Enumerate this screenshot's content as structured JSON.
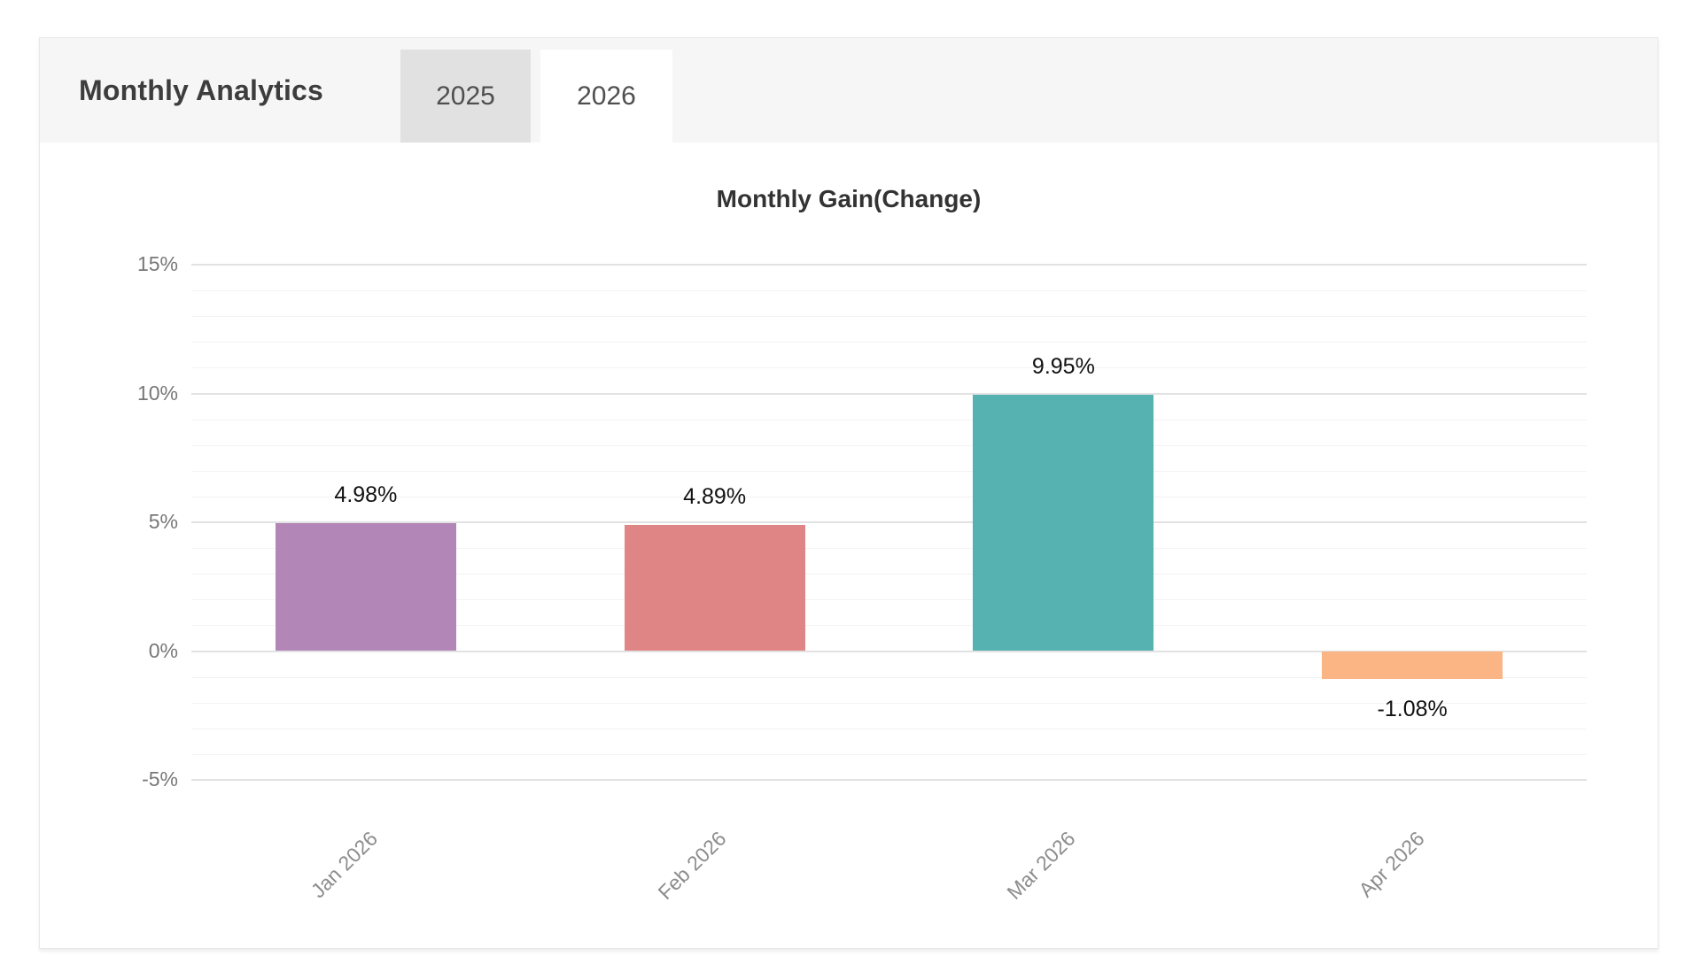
{
  "header": {
    "title": "Monthly Analytics",
    "tabs": [
      {
        "label": "2025",
        "active": false
      },
      {
        "label": "2026",
        "active": true
      }
    ]
  },
  "chart_data": {
    "type": "bar",
    "title": "Monthly Gain(Change)",
    "categories": [
      "Jan 2026",
      "Feb 2026",
      "Mar 2026",
      "Apr 2026"
    ],
    "values": [
      4.98,
      4.89,
      9.95,
      -1.08
    ],
    "value_labels": [
      "4.98%",
      "4.89%",
      "9.95%",
      "-1.08%"
    ],
    "bar_colors": [
      "#b287b8",
      "#df8585",
      "#56b1b1",
      "#fbb484"
    ],
    "y_ticks": [
      {
        "label": "15%",
        "value": 15
      },
      {
        "label": "10%",
        "value": 10
      },
      {
        "label": "5%",
        "value": 5
      },
      {
        "label": "0%",
        "value": 0
      },
      {
        "label": "-5%",
        "value": -5
      }
    ],
    "ylim": [
      -5,
      15
    ],
    "y_major_step": 5,
    "y_minor_step": 1,
    "grid": true,
    "legend": false,
    "xlabel": "",
    "ylabel": ""
  },
  "colors": {
    "header_bg": "#f6f6f6",
    "inactive_tab_bg": "#e1e1e1",
    "active_tab_bg": "#ffffff",
    "card_border": "#e8e8e8",
    "grid_major": "#e2e2e2",
    "grid_minor": "#f3f3f3",
    "axis_text": "#777777",
    "xlabel_text": "#8c8c8c",
    "value_text": "#111111"
  }
}
